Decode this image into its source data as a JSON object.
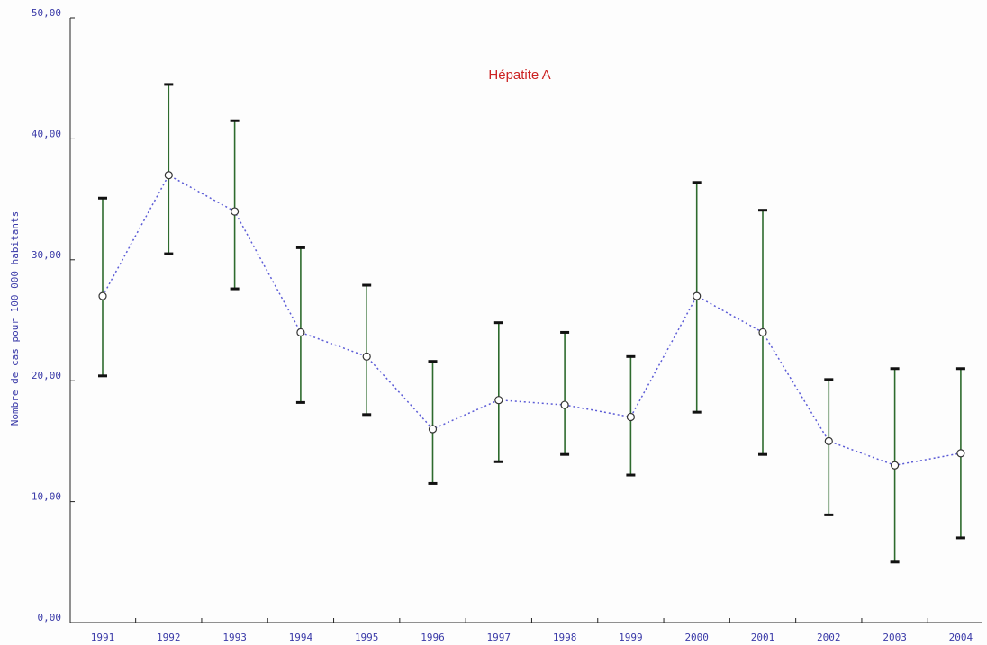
{
  "chart_data": {
    "type": "line",
    "title": "Hépatite A",
    "xlabel": "",
    "ylabel": "Nombre de cas pour 100 000 habitants",
    "ylim": [
      0,
      50
    ],
    "yticks": [
      "0,00",
      "10,00",
      "20,00",
      "30,00",
      "40,00",
      "50,00"
    ],
    "categories": [
      "1991",
      "1992",
      "1993",
      "1994",
      "1995",
      "1996",
      "1997",
      "1998",
      "1999",
      "2000",
      "2001",
      "2002",
      "2003",
      "2004"
    ],
    "values": [
      27,
      37,
      34,
      24,
      22,
      16,
      18.4,
      18,
      17,
      27,
      24,
      15,
      13,
      14
    ],
    "error_low": [
      20.4,
      30.5,
      27.6,
      18.2,
      17.2,
      11.5,
      13.3,
      13.9,
      12.2,
      17.4,
      13.9,
      8.9,
      5,
      7
    ],
    "error_high": [
      35.1,
      44.5,
      41.5,
      31,
      27.9,
      21.6,
      24.8,
      24,
      22,
      36.4,
      34.1,
      20.1,
      21,
      21
    ],
    "grid": false,
    "legend": "none",
    "colors": {
      "line": "#5b5bd6",
      "error_bar": "#2e6b2e",
      "cap": "#111111",
      "axis_text": "#3a3aa8",
      "title": "#cc2222",
      "axis": "#222222"
    }
  }
}
